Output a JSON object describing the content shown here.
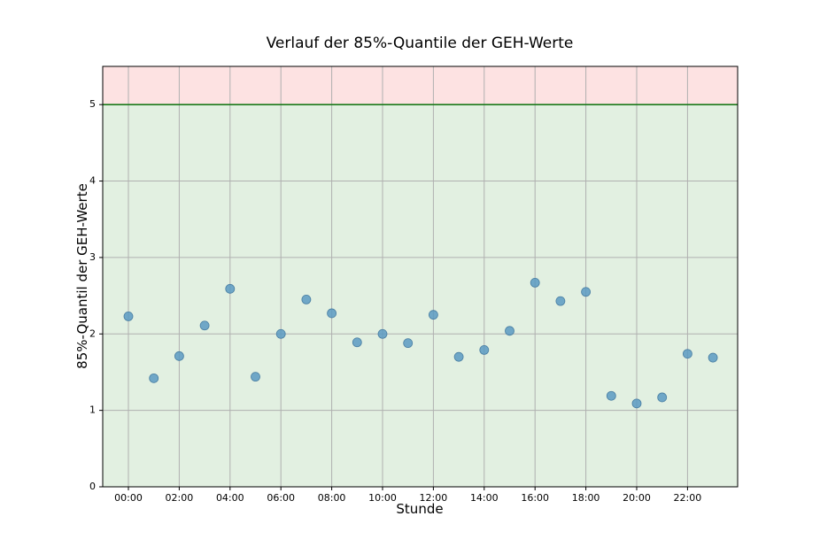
{
  "chart_data": {
    "type": "scatter",
    "title": "Verlauf der 85%-Quantile der GEH-Werte",
    "xlabel": "Stunde",
    "ylabel": "85%-Quantil der GEH-Werte",
    "x_categories": [
      "00:00",
      "01:00",
      "02:00",
      "03:00",
      "04:00",
      "05:00",
      "06:00",
      "07:00",
      "08:00",
      "09:00",
      "10:00",
      "11:00",
      "12:00",
      "13:00",
      "14:00",
      "15:00",
      "16:00",
      "17:00",
      "18:00",
      "19:00",
      "20:00",
      "21:00",
      "22:00",
      "23:00"
    ],
    "x_tick_labels": [
      "00:00",
      "02:00",
      "04:00",
      "06:00",
      "08:00",
      "10:00",
      "12:00",
      "14:00",
      "16:00",
      "18:00",
      "20:00",
      "22:00"
    ],
    "values": [
      2.23,
      1.42,
      1.71,
      2.11,
      2.59,
      1.44,
      2.0,
      2.45,
      2.27,
      1.89,
      2.0,
      1.88,
      2.25,
      1.7,
      1.79,
      2.04,
      2.67,
      2.43,
      2.55,
      1.19,
      1.09,
      1.17,
      1.74,
      1.69
    ],
    "ylim": [
      0,
      5.5
    ],
    "y_ticks": [
      0,
      1,
      2,
      3,
      4,
      5
    ],
    "threshold": 5,
    "grid": true,
    "colors": {
      "point": "#5b9ac2",
      "point_edge": "#4a7fa3",
      "green_zone": "#e2f0e1",
      "red_zone": "#fde2e2",
      "threshold_line": "#1a7a1a",
      "grid": "#b0b0b0"
    }
  }
}
